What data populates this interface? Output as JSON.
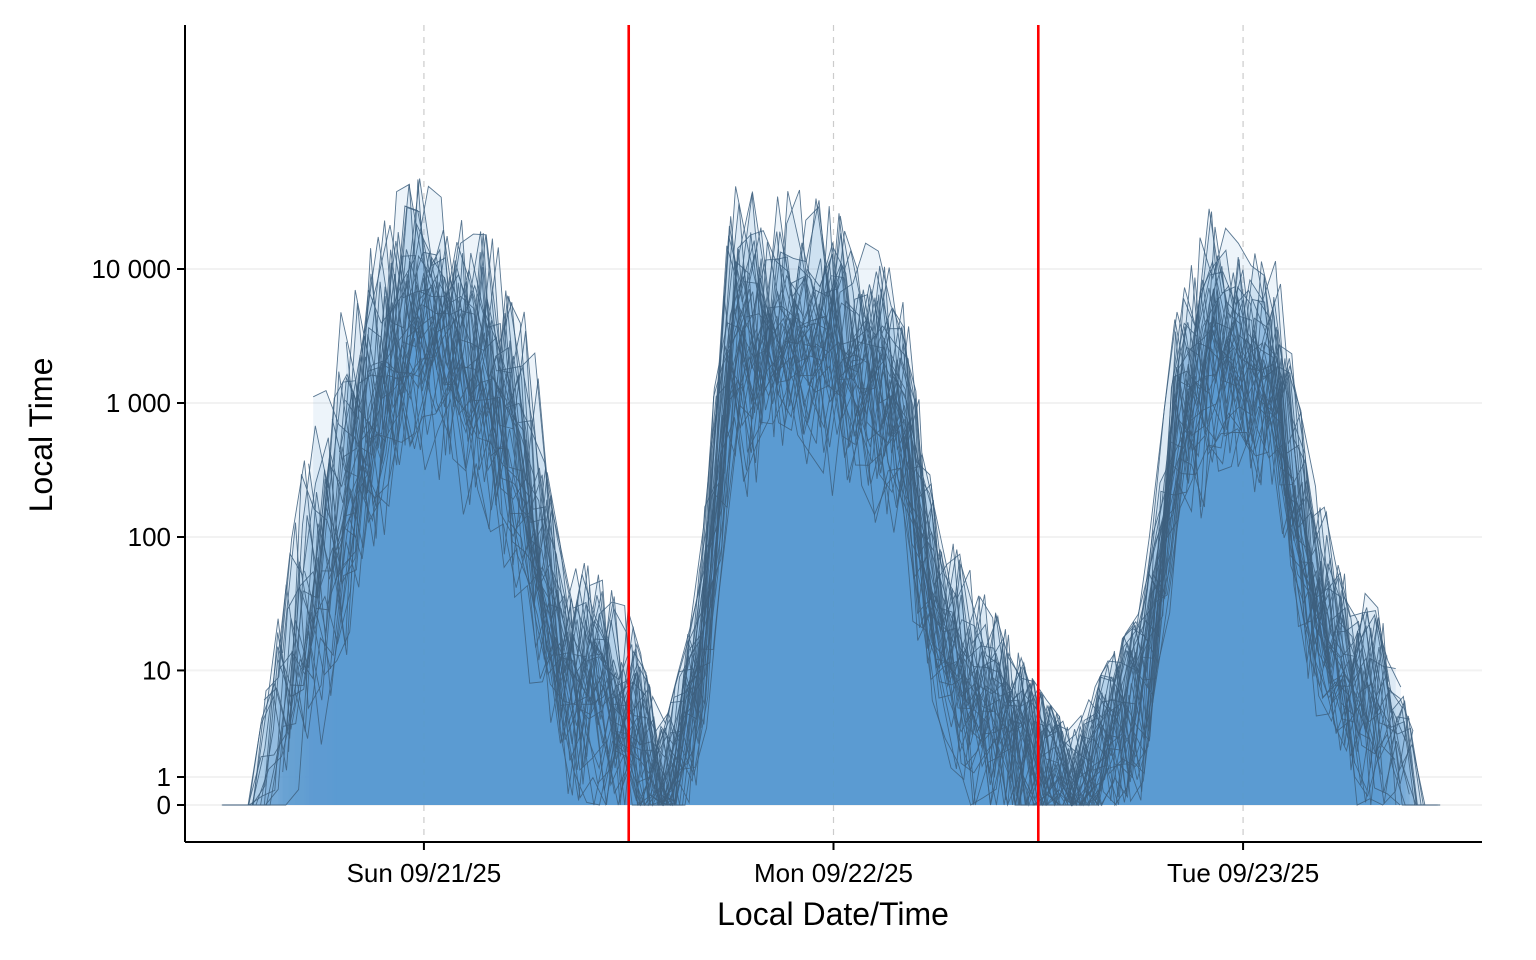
{
  "chart_data": {
    "type": "area",
    "title": "",
    "xlabel": "Local Date/Time",
    "ylabel": "Local Time",
    "y_scale": "pseudo-log",
    "y_ticks": [
      {
        "value": 0,
        "label": "0"
      },
      {
        "value": 1,
        "label": "1"
      },
      {
        "value": 10,
        "label": "10"
      },
      {
        "value": 100,
        "label": "100"
      },
      {
        "value": 1000,
        "label": "1 000"
      },
      {
        "value": 10000,
        "label": "10 000"
      }
    ],
    "ylim": [
      0,
      60000
    ],
    "x_ticks": [
      {
        "value": "2025-09-21T00:00",
        "label": "Sun 09/21/25"
      },
      {
        "value": "2025-09-22T00:00",
        "label": "Mon 09/22/25"
      },
      {
        "value": "2025-09-23T00:00",
        "label": "Tue 09/23/25"
      }
    ],
    "xlim": [
      "2025-09-20T10:00",
      "2025-09-23T14:00"
    ],
    "vertical_lines": [
      "2025-09-21T12:00",
      "2025-09-22T12:00"
    ],
    "vertical_line_color": "#ff0000",
    "fill_color": "#5b9bcf",
    "line_color": "#3d5f7e",
    "grid": "horizontal-major plus dashed vertical at ticks",
    "legend": "none",
    "series_count": 40,
    "envelope": {
      "x": [
        "2025-09-20T12:00",
        "2025-09-20T14:00",
        "2025-09-20T16:00",
        "2025-09-20T18:00",
        "2025-09-20T20:00",
        "2025-09-20T22:00",
        "2025-09-21T00:00",
        "2025-09-21T02:00",
        "2025-09-21T04:00",
        "2025-09-21T06:00",
        "2025-09-21T08:00",
        "2025-09-21T10:00",
        "2025-09-21T12:00",
        "2025-09-21T14:00",
        "2025-09-21T16:00",
        "2025-09-21T18:00",
        "2025-09-21T20:00",
        "2025-09-21T22:00",
        "2025-09-22T00:00",
        "2025-09-22T02:00",
        "2025-09-22T04:00",
        "2025-09-22T06:00",
        "2025-09-22T08:00",
        "2025-09-22T10:00",
        "2025-09-22T12:00",
        "2025-09-22T14:00",
        "2025-09-22T16:00",
        "2025-09-22T18:00",
        "2025-09-22T20:00",
        "2025-09-22T22:00",
        "2025-09-23T00:00",
        "2025-09-23T02:00",
        "2025-09-23T04:00",
        "2025-09-23T06:00",
        "2025-09-23T08:00",
        "2025-09-23T10:00",
        "2025-09-23T12:00"
      ],
      "max": [
        0,
        0,
        100,
        2000,
        5000,
        25000,
        35000,
        17000,
        12000,
        5000,
        60,
        40,
        20,
        2,
        25,
        30000,
        25000,
        28000,
        20000,
        12000,
        6000,
        100,
        40,
        15,
        5,
        2,
        8,
        20,
        3000,
        20000,
        10000,
        8000,
        200,
        50,
        20,
        2,
        0
      ],
      "median": [
        0,
        0,
        0,
        1,
        20,
        150,
        400,
        300,
        100,
        8,
        1,
        0,
        0,
        0,
        1,
        100,
        400,
        350,
        300,
        200,
        80,
        5,
        0,
        0,
        0,
        0,
        0,
        1,
        80,
        300,
        400,
        200,
        10,
        1,
        0,
        0,
        0
      ]
    }
  }
}
